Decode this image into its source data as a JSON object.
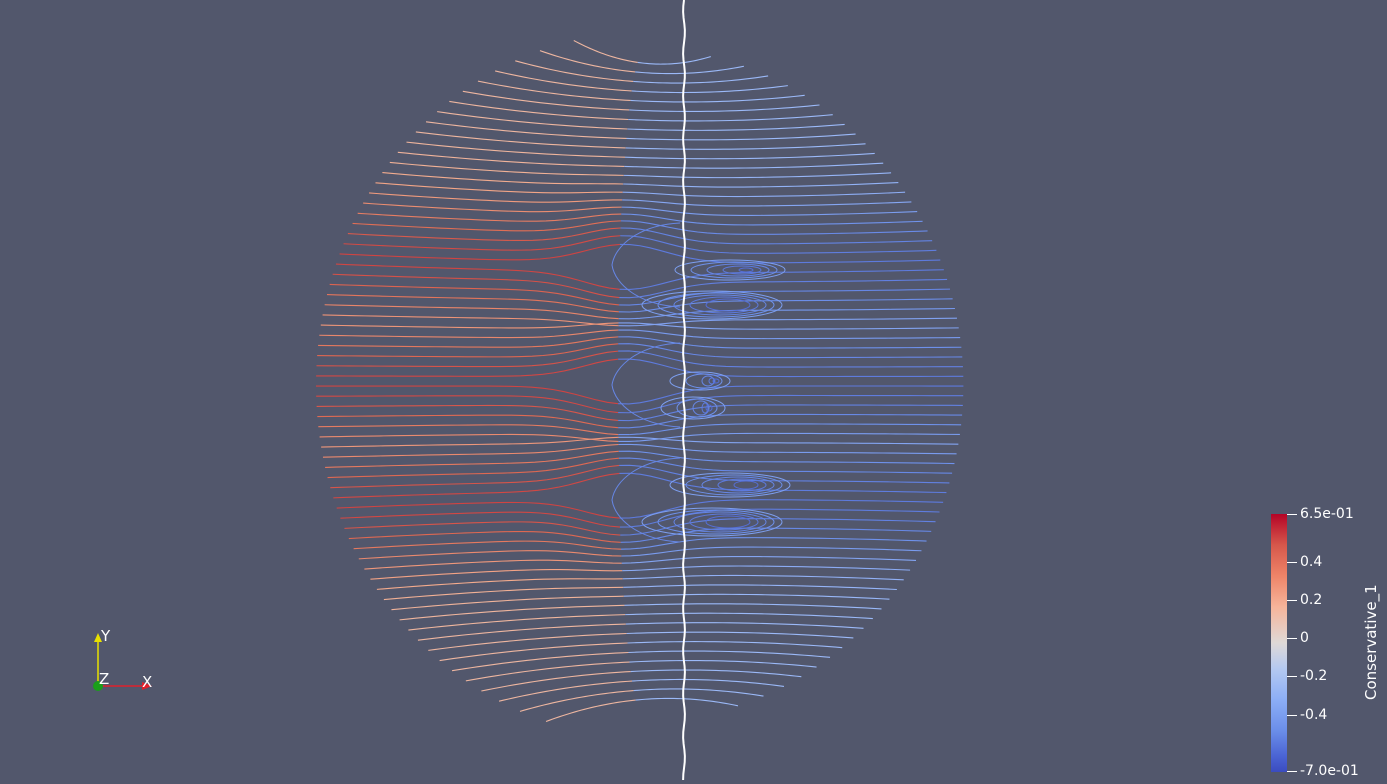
{
  "render_view": {
    "background_color": "#52576c",
    "description_name": "streamline-render"
  },
  "colorbar": {
    "title": "Conservative_1",
    "max_label": "6.5e-01",
    "min_label": "-7.0e-01",
    "range": [
      -0.7,
      0.65
    ],
    "ticks": [
      {
        "label": "0.4",
        "value": 0.4
      },
      {
        "label": "0.2",
        "value": 0.2
      },
      {
        "label": "0",
        "value": 0.0
      },
      {
        "label": "-0.2",
        "value": -0.2
      },
      {
        "label": "-0.4",
        "value": -0.4
      }
    ],
    "colormap": "Cool to Warm"
  },
  "orientation_axes": {
    "x_label": "X",
    "y_label": "Y",
    "z_label": "Z",
    "x_color": "#e0202c",
    "y_color": "#e8e000",
    "z_color": "#1a9e1a"
  }
}
